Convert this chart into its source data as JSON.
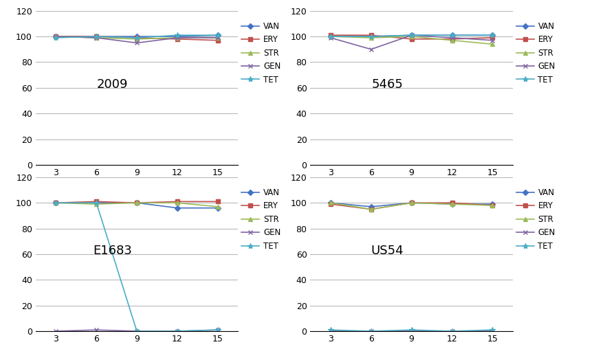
{
  "x": [
    3,
    6,
    9,
    12,
    15
  ],
  "charts": [
    {
      "title": "2009",
      "series": {
        "VAN": [
          100,
          100,
          100,
          100,
          101
        ],
        "ERY": [
          100,
          100,
          99,
          98,
          97
        ],
        "STR": [
          100,
          99,
          98,
          99,
          99
        ],
        "GEN": [
          100,
          99,
          95,
          99,
          99
        ],
        "TET": [
          99,
          100,
          99,
          101,
          101
        ]
      }
    },
    {
      "title": "5465",
      "series": {
        "VAN": [
          100,
          100,
          101,
          101,
          101
        ],
        "ERY": [
          101,
          101,
          98,
          98,
          99
        ],
        "STR": [
          100,
          99,
          100,
          97,
          94
        ],
        "GEN": [
          99,
          90,
          101,
          99,
          97
        ],
        "TET": [
          100,
          100,
          101,
          101,
          101
        ]
      }
    },
    {
      "title": "E1683",
      "series": {
        "VAN": [
          100,
          100,
          100,
          96,
          96
        ],
        "ERY": [
          100,
          101,
          100,
          101,
          101
        ],
        "STR": [
          100,
          99,
          100,
          100,
          97
        ],
        "GEN": [
          0,
          1,
          0,
          0,
          1
        ],
        "TET": [
          100,
          100,
          0,
          0,
          1
        ]
      }
    },
    {
      "title": "US54",
      "series": {
        "VAN": [
          100,
          97,
          100,
          99,
          99
        ],
        "ERY": [
          99,
          95,
          100,
          100,
          98
        ],
        "STR": [
          100,
          95,
          100,
          99,
          98
        ],
        "GEN": [
          0,
          0,
          0,
          0,
          0
        ],
        "TET": [
          1,
          0,
          1,
          0,
          1
        ]
      }
    }
  ],
  "series_colors": {
    "VAN": "#4472C4",
    "ERY": "#C0504D",
    "STR": "#9BBB59",
    "GEN": "#8064A2",
    "TET": "#4BACC6"
  },
  "marker_styles": {
    "VAN": "D",
    "ERY": "s",
    "STR": "^",
    "GEN": "x",
    "TET": "*"
  },
  "ylim": [
    0,
    120
  ],
  "yticks": [
    0,
    20,
    40,
    60,
    80,
    100,
    120
  ],
  "background_color": "#FFFFFF",
  "grid_color": "#B8B8B8",
  "label_fontsize": 9,
  "title_fontsize": 13,
  "legend_fontsize": 8.5
}
